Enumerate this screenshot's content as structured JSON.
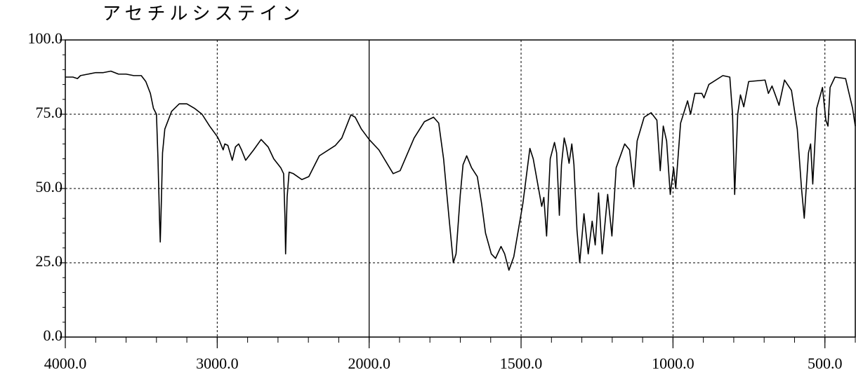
{
  "chart_data": {
    "type": "line",
    "title": "アセチルシステイン",
    "x": [
      4000,
      3950,
      3920,
      3900,
      3850,
      3800,
      3750,
      3700,
      3650,
      3600,
      3550,
      3500,
      3470,
      3440,
      3420,
      3400,
      3390,
      3380,
      3375,
      3368,
      3360,
      3345,
      3330,
      3300,
      3250,
      3200,
      3150,
      3100,
      3050,
      3000,
      2985,
      2961,
      2950,
      2930,
      2901,
      2880,
      2859,
      2840,
      2813,
      2760,
      2711,
      2665,
      2628,
      2582,
      2563,
      2554,
      2550,
      2540,
      2527,
      2499,
      2443,
      2397,
      2328,
      2222,
      2180,
      2120,
      2092,
      2051,
      2000,
      1968,
      1921,
      1898,
      1852,
      1818,
      1788,
      1771,
      1755,
      1737,
      1723,
      1714,
      1700,
      1691,
      1679,
      1663,
      1644,
      1630,
      1617,
      1598,
      1584,
      1566,
      1554,
      1540,
      1524,
      1494,
      1471,
      1460,
      1446,
      1432,
      1425,
      1416,
      1404,
      1390,
      1383,
      1374,
      1367,
      1358,
      1351,
      1342,
      1333,
      1326,
      1316,
      1307,
      1293,
      1279,
      1266,
      1256,
      1245,
      1233,
      1215,
      1201,
      1187,
      1159,
      1143,
      1129,
      1118,
      1095,
      1072,
      1053,
      1042,
      1032,
      1021,
      1009,
      998,
      991,
      975,
      952,
      942,
      928,
      905,
      898,
      882,
      836,
      813,
      804,
      797,
      787,
      778,
      767,
      751,
      697,
      686,
      674,
      665,
      651,
      633,
      610,
      591,
      577,
      568,
      554,
      547,
      540,
      527,
      508,
      497,
      490,
      483,
      467,
      432,
      409,
      400
    ],
    "values": [
      87.5,
      87.5,
      87,
      88,
      88.5,
      89,
      89,
      89.5,
      88.5,
      88.5,
      88,
      88,
      86,
      82,
      77,
      75,
      60,
      40,
      32,
      45,
      62,
      70,
      72,
      76,
      78.5,
      78.5,
      77,
      75,
      71,
      67.5,
      66,
      63,
      65,
      64.5,
      59.5,
      64,
      65,
      63,
      59.5,
      63,
      66.5,
      64,
      60,
      57,
      55,
      40,
      28,
      47,
      55.5,
      55,
      53,
      54,
      61,
      64.5,
      67,
      74.8,
      74,
      70,
      66.5,
      63,
      55,
      56,
      67,
      72.5,
      74,
      72,
      60,
      40,
      25,
      28,
      48,
      58,
      61,
      57,
      54,
      45,
      35,
      28,
      26.5,
      30.5,
      28,
      22.5,
      27,
      45,
      63.5,
      60,
      52,
      44,
      47,
      34,
      60,
      65.5,
      62,
      41,
      58,
      67,
      64,
      58.5,
      65,
      58,
      36,
      25,
      41.5,
      28,
      39,
      31,
      48.5,
      28,
      48,
      34,
      57,
      65,
      63,
      50.5,
      66,
      74,
      75.5,
      73,
      56,
      71,
      66,
      48,
      57,
      50,
      72,
      79.5,
      75,
      82,
      82,
      80.5,
      85,
      88,
      87.5,
      75,
      48,
      75,
      81.5,
      77.5,
      86,
      86.5,
      82,
      84.5,
      82,
      78,
      86.5,
      83,
      70,
      50,
      40,
      62,
      65,
      51.5,
      77,
      84,
      73,
      71,
      84,
      87.5,
      87,
      77,
      71
    ],
    "color": "#000000",
    "xlim": [
      4000,
      400
    ],
    "xbreak": 2000,
    "xbreak_zoom": 2,
    "xticks": [
      {
        "value": 4000,
        "label": "4000.0"
      },
      {
        "value": 3000,
        "label": "3000.0"
      },
      {
        "value": 2000,
        "label": "2000.0"
      },
      {
        "value": 1500,
        "label": "1500.0"
      },
      {
        "value": 1000,
        "label": "1000.0"
      },
      {
        "value": 500,
        "label": "500.0"
      }
    ],
    "xminor_step": 200,
    "ylim": [
      0,
      100
    ],
    "yticks": [
      {
        "value": 0,
        "label": "0.0"
      },
      {
        "value": 25,
        "label": "25.0"
      },
      {
        "value": 50,
        "label": "50.0"
      },
      {
        "value": 75,
        "label": "75.0"
      },
      {
        "value": 100,
        "label": "100.0"
      }
    ],
    "yminor_step": 5,
    "grid": true
  }
}
